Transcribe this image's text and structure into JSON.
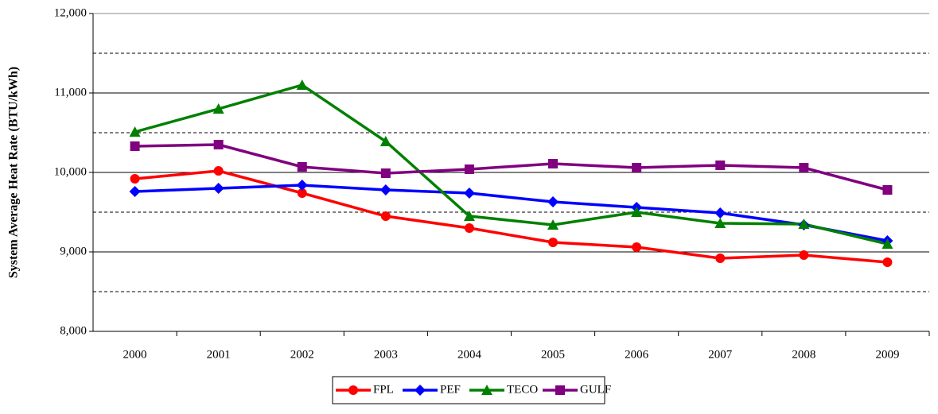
{
  "chart_data": {
    "type": "line",
    "y_label": "System Average Heat Rate (BTU/kWh)",
    "categories": [
      "2000",
      "2001",
      "2002",
      "2003",
      "2004",
      "2005",
      "2006",
      "2007",
      "2008",
      "2009"
    ],
    "series": [
      {
        "name": "FPL",
        "color": "#ff0000",
        "marker": "circle",
        "values": [
          9920,
          10020,
          9740,
          9450,
          9300,
          9120,
          9060,
          8920,
          8960,
          8870
        ]
      },
      {
        "name": "PEF",
        "color": "#0000ff",
        "marker": "diamond",
        "values": [
          9760,
          9800,
          9840,
          9780,
          9740,
          9630,
          9560,
          9490,
          9340,
          9140
        ]
      },
      {
        "name": "TECO",
        "color": "#008000",
        "marker": "triangle",
        "values": [
          10510,
          10800,
          11100,
          10390,
          9450,
          9340,
          9500,
          9360,
          9350,
          9100
        ]
      },
      {
        "name": "GULF",
        "color": "#800080",
        "marker": "square",
        "values": [
          10330,
          10350,
          10070,
          9990,
          10040,
          10110,
          10060,
          10090,
          10060,
          9780
        ]
      }
    ],
    "ylim": [
      8000,
      12000
    ],
    "yticks": [
      {
        "value": 8000,
        "label": "8,000"
      },
      {
        "value": 9000,
        "label": "9,000"
      },
      {
        "value": 10000,
        "label": "10,000"
      },
      {
        "value": 11000,
        "label": "11,000"
      },
      {
        "value": 12000,
        "label": "12,000"
      }
    ],
    "yminorticks": [
      8500,
      9500,
      10500,
      11500
    ],
    "grid": true,
    "legend": "bottom"
  }
}
